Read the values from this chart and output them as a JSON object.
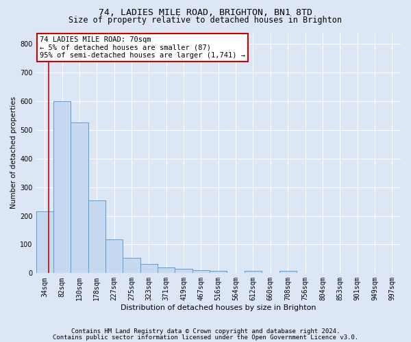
{
  "title_line1": "74, LADIES MILE ROAD, BRIGHTON, BN1 8TD",
  "title_line2": "Size of property relative to detached houses in Brighton",
  "xlabel": "Distribution of detached houses by size in Brighton",
  "ylabel": "Number of detached properties",
  "categories": [
    "34sqm",
    "82sqm",
    "130sqm",
    "178sqm",
    "227sqm",
    "275sqm",
    "323sqm",
    "371sqm",
    "419sqm",
    "467sqm",
    "516sqm",
    "564sqm",
    "612sqm",
    "660sqm",
    "708sqm",
    "756sqm",
    "804sqm",
    "853sqm",
    "901sqm",
    "949sqm",
    "997sqm"
  ],
  "bar_heights": [
    215,
    600,
    525,
    255,
    117,
    53,
    32,
    19,
    16,
    11,
    9,
    0,
    9,
    0,
    7,
    0,
    0,
    0,
    0,
    0,
    0
  ],
  "bar_color": "#c5d9f0",
  "bar_edge_color": "#5b9bd5",
  "red_line_x": 0.22,
  "annotation_text": "74 LADIES MILE ROAD: 70sqm\n← 5% of detached houses are smaller (87)\n95% of semi-detached houses are larger (1,741) →",
  "annotation_box_color": "#ffffff",
  "annotation_border_color": "#cc0000",
  "footer_line1": "Contains HM Land Registry data © Crown copyright and database right 2024.",
  "footer_line2": "Contains public sector information licensed under the Open Government Licence v3.0.",
  "ylim": [
    0,
    840
  ],
  "yticks": [
    0,
    100,
    200,
    300,
    400,
    500,
    600,
    700,
    800
  ],
  "background_color": "#dce6f5",
  "plot_bg_color": "#dce6f5",
  "grid_color": "#ffffff",
  "title_fontsize": 9.5,
  "subtitle_fontsize": 8.5,
  "axis_label_fontsize": 7.5,
  "tick_fontsize": 7,
  "annotation_fontsize": 7.5,
  "footer_fontsize": 6.5
}
